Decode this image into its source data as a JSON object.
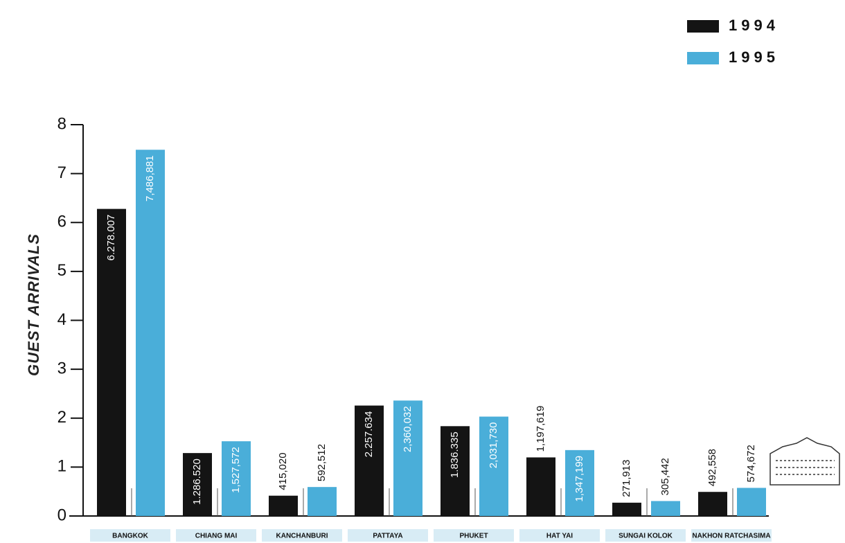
{
  "chart_data": {
    "type": "bar",
    "y_label": "GUEST ARRIVALS",
    "categories": [
      "BANGKOK",
      "CHIANG MAI",
      "KANCHANBURI",
      "PATTAYA",
      "PHUKET",
      "HAT YAI",
      "SUNGAI KOLOK",
      "NAKHON RATCHASIMA"
    ],
    "series": [
      {
        "name": "1994",
        "color": "#141414",
        "values": [
          6.278007,
          1.28652,
          0.41502,
          2.257634,
          1.836335,
          1.197619,
          0.271913,
          0.492558
        ],
        "value_labels": [
          "6.278.007",
          "1.286.520",
          "415,020",
          "2.257.634",
          "1.836.335",
          "1,197,619",
          "271,913",
          "492,558"
        ]
      },
      {
        "name": "1995",
        "color": "#4aaed9",
        "values": [
          7.486881,
          1.527572,
          0.592512,
          2.360032,
          2.03173,
          1.347199,
          0.305442,
          0.574672
        ],
        "value_labels": [
          "7,486,881",
          "1,527,572",
          "592,512",
          "2,360,032",
          "2,031,730",
          "1,347,199",
          "305,442",
          "574,672"
        ]
      }
    ],
    "ylim": [
      0,
      8
    ],
    "yticks": [
      0,
      1,
      2,
      3,
      4,
      5,
      6,
      7,
      8
    ]
  }
}
